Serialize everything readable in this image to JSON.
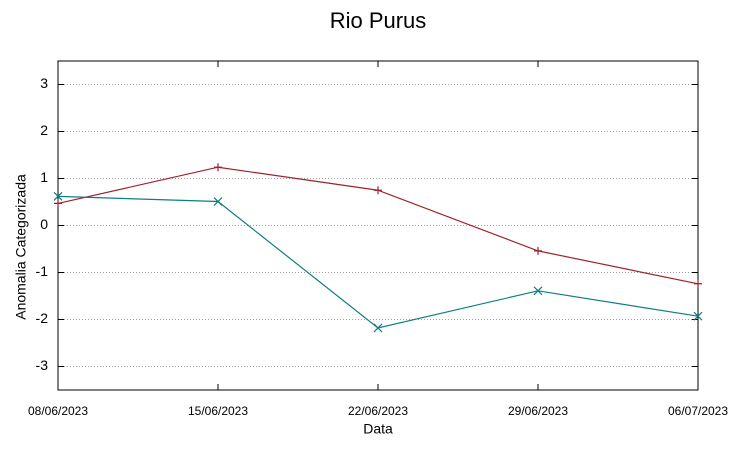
{
  "chart_data": {
    "type": "line",
    "title": "Rio Purus",
    "xlabel": "Data",
    "ylabel": "Anomalia Categorizada",
    "categories": [
      "08/06/2023",
      "15/06/2023",
      "22/06/2023",
      "29/06/2023",
      "06/07/2023"
    ],
    "series": [
      {
        "color": "#a0202a",
        "marker": "plus",
        "values": [
          0.47,
          1.24,
          0.75,
          -0.54,
          -1.24
        ]
      },
      {
        "color": "#0e7e80",
        "marker": "cross",
        "values": [
          0.62,
          0.51,
          -2.18,
          -1.39,
          -1.93
        ]
      }
    ],
    "ylim": [
      -3.5,
      3.5
    ],
    "yticks": [
      -3,
      -2,
      -1,
      0,
      1,
      2,
      3
    ],
    "grid": true
  }
}
